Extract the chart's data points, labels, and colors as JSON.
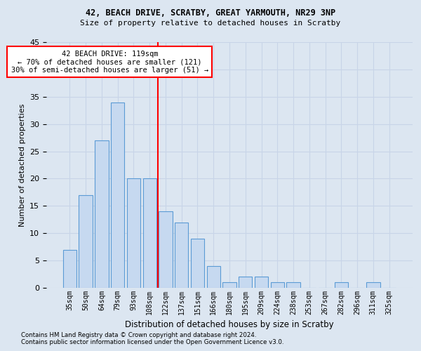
{
  "title1": "42, BEACH DRIVE, SCRATBY, GREAT YARMOUTH, NR29 3NP",
  "title2": "Size of property relative to detached houses in Scratby",
  "xlabel": "Distribution of detached houses by size in Scratby",
  "ylabel": "Number of detached properties",
  "categories": [
    "35sqm",
    "50sqm",
    "64sqm",
    "79sqm",
    "93sqm",
    "108sqm",
    "122sqm",
    "137sqm",
    "151sqm",
    "166sqm",
    "180sqm",
    "195sqm",
    "209sqm",
    "224sqm",
    "238sqm",
    "253sqm",
    "267sqm",
    "282sqm",
    "296sqm",
    "311sqm",
    "325sqm"
  ],
  "values": [
    7,
    17,
    27,
    34,
    20,
    20,
    14,
    12,
    9,
    4,
    1,
    2,
    2,
    1,
    1,
    0,
    0,
    1,
    0,
    1,
    0
  ],
  "bar_color": "#c6d9f0",
  "bar_edge_color": "#5b9bd5",
  "grid_color": "#c8d4e8",
  "background_color": "#dce6f1",
  "annotation_text": "42 BEACH DRIVE: 119sqm\n← 70% of detached houses are smaller (121)\n30% of semi-detached houses are larger (51) →",
  "annotation_box_color": "white",
  "annotation_box_edge_color": "red",
  "vline_x_index": 5.5,
  "vline_color": "red",
  "ylim": [
    0,
    45
  ],
  "footnote1": "Contains HM Land Registry data © Crown copyright and database right 2024.",
  "footnote2": "Contains public sector information licensed under the Open Government Licence v3.0."
}
